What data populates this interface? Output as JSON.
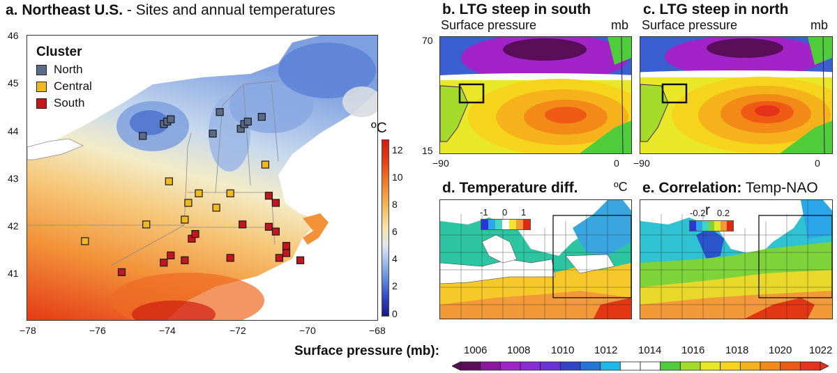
{
  "chart_data": [
    {
      "id": "a",
      "type": "map-scatter",
      "title_bold": "a. Northeast U.S.",
      "title_rest": " - Sites and annual temperatures",
      "x_ticks": [
        "−78",
        "−76",
        "−74",
        "−72",
        "−70",
        "−68"
      ],
      "y_ticks": [
        "46",
        "45",
        "44",
        "43",
        "42",
        "41"
      ],
      "xlim": [
        -78,
        -68
      ],
      "ylim": [
        40.05,
        46
      ],
      "legend": {
        "title": "Cluster",
        "entries": [
          {
            "name": "North",
            "color": "#5b6a8a"
          },
          {
            "name": "Central",
            "color": "#f2b820"
          },
          {
            "name": "South",
            "color": "#c4161c"
          }
        ]
      },
      "colorbar": {
        "unit": "ºC",
        "ticks": [
          "12",
          "10",
          "8",
          "6",
          "4",
          "2",
          "0"
        ],
        "range": [
          0,
          13
        ],
        "colors": [
          "#2a1e8c",
          "#3047c2",
          "#4f7ad8",
          "#8fb0e6",
          "#c6d8ee",
          "#f3ecc8",
          "#f7d58d",
          "#f4b55a",
          "#f29138",
          "#ee6a22",
          "#e53a16",
          "#d01e10"
        ]
      },
      "sites": {
        "North": [
          [
            -74.7,
            43.9
          ],
          [
            -74.1,
            44.15
          ],
          [
            -74.0,
            44.2
          ],
          [
            -73.9,
            44.25
          ],
          [
            -72.7,
            43.95
          ],
          [
            -72.5,
            44.4
          ],
          [
            -71.9,
            44.05
          ],
          [
            -71.8,
            44.15
          ],
          [
            -71.7,
            44.2
          ],
          [
            -71.3,
            44.3
          ]
        ],
        "Central": [
          [
            -76.35,
            41.7
          ],
          [
            -74.6,
            42.05
          ],
          [
            -73.95,
            42.95
          ],
          [
            -73.4,
            42.5
          ],
          [
            -73.1,
            42.7
          ],
          [
            -72.6,
            42.4
          ],
          [
            -72.2,
            42.7
          ],
          [
            -73.5,
            42.15
          ],
          [
            -71.2,
            43.3
          ]
        ],
        "South": [
          [
            -75.3,
            41.05
          ],
          [
            -74.1,
            41.25
          ],
          [
            -73.9,
            41.4
          ],
          [
            -73.5,
            41.3
          ],
          [
            -73.3,
            41.75
          ],
          [
            -73.2,
            41.85
          ],
          [
            -72.2,
            41.35
          ],
          [
            -71.85,
            42.05
          ],
          [
            -71.1,
            42.0
          ],
          [
            -70.9,
            41.9
          ],
          [
            -70.8,
            41.35
          ],
          [
            -70.6,
            41.45
          ],
          [
            -70.6,
            41.6
          ],
          [
            -70.2,
            41.3
          ],
          [
            -71.1,
            42.65
          ],
          [
            -70.9,
            42.5
          ]
        ]
      }
    },
    {
      "id": "b",
      "type": "heatmap",
      "title": "b. LTG steep in south",
      "subtitle": "Surface pressure",
      "unit": "mb",
      "y_ticks": [
        "70",
        "15"
      ],
      "x_ticks": [
        "−90",
        "0"
      ]
    },
    {
      "id": "c",
      "type": "heatmap",
      "title": "c. LTG steep in north",
      "subtitle": "Surface pressure",
      "unit": "mb",
      "x_ticks": [
        "−90",
        "0"
      ]
    },
    {
      "id": "d",
      "type": "heatmap",
      "title": "d. Temperature diff.",
      "unit": "ºC",
      "scale_ticks": [
        "-1",
        "0",
        "1"
      ]
    },
    {
      "id": "e",
      "type": "heatmap",
      "title_bold": "e. Correlation:",
      "title_rest": " Temp-NAO",
      "scale_symbol": "r",
      "scale_ticks": [
        "-0.2",
        "0.2"
      ]
    },
    {
      "id": "pressure-colorbar",
      "type": "colorbar",
      "label": "Surface pressure (mb):",
      "ticks": [
        "1006",
        "1008",
        "1010",
        "1012",
        "1014",
        "1016",
        "1018",
        "1020",
        "1022"
      ],
      "colors": [
        "#5a0e5a",
        "#8d15a0",
        "#a224c9",
        "#8a2bd8",
        "#6a33d8",
        "#3245c8",
        "#2575d8",
        "#1eb8e8",
        "#ffffff",
        "#ffffff",
        "#4fcc3a",
        "#a5dc2c",
        "#e8e828",
        "#f6d41c",
        "#f6b21a",
        "#f38a18",
        "#ef5a15",
        "#e5321a"
      ]
    }
  ]
}
